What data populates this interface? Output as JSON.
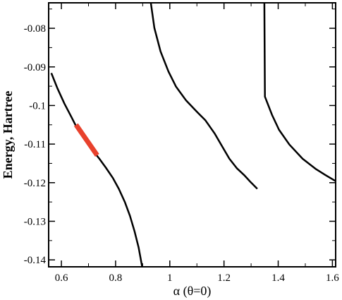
{
  "chart_data": {
    "type": "line",
    "title": "",
    "xlabel": "α (θ=0)",
    "ylabel": "Energy, Hartree",
    "xlim": [
      0.553,
      1.612
    ],
    "ylim": [
      -0.1418,
      -0.0734
    ],
    "grid": false,
    "legend": "none",
    "x_ticks": [
      0.6,
      0.8,
      1.0,
      1.2,
      1.4,
      1.6
    ],
    "x_tick_labels": [
      "0.6",
      "0.8",
      "1",
      "1.2",
      "1.4",
      "1.6"
    ],
    "y_ticks": [
      -0.08,
      -0.09,
      -0.1,
      -0.11,
      -0.12,
      -0.13,
      -0.14
    ],
    "y_tick_labels": [
      "-0.08",
      "-0.09",
      "-0.1",
      "-0.11",
      "-0.12",
      "-0.13",
      "-0.14"
    ],
    "series": [
      {
        "color": "#000000",
        "points": [
          [
            0.563,
            -0.0916
          ],
          [
            0.585,
            -0.0955
          ],
          [
            0.611,
            -0.0995
          ],
          [
            0.637,
            -0.103
          ],
          [
            0.661,
            -0.1063
          ],
          [
            0.688,
            -0.109
          ],
          [
            0.714,
            -0.1115
          ],
          [
            0.74,
            -0.1138
          ],
          [
            0.764,
            -0.1161
          ],
          [
            0.79,
            -0.1188
          ],
          [
            0.812,
            -0.1216
          ],
          [
            0.834,
            -0.125
          ],
          [
            0.853,
            -0.1286
          ],
          [
            0.87,
            -0.1326
          ],
          [
            0.885,
            -0.1368
          ],
          [
            0.898,
            -0.1418
          ]
        ]
      },
      {
        "color": "#000000",
        "points": [
          [
            0.93,
            -0.0734
          ],
          [
            0.943,
            -0.0799
          ],
          [
            0.966,
            -0.086
          ],
          [
            0.995,
            -0.0912
          ],
          [
            1.023,
            -0.0951
          ],
          [
            1.06,
            -0.0987
          ],
          [
            1.101,
            -0.1017
          ],
          [
            1.131,
            -0.1038
          ],
          [
            1.165,
            -0.1072
          ],
          [
            1.195,
            -0.1108
          ],
          [
            1.22,
            -0.1138
          ],
          [
            1.248,
            -0.1163
          ],
          [
            1.274,
            -0.118
          ],
          [
            1.299,
            -0.1199
          ],
          [
            1.323,
            -0.1216
          ]
        ]
      },
      {
        "color": "#000000",
        "points": [
          [
            1.349,
            -0.0734
          ],
          [
            1.351,
            -0.0977
          ],
          [
            1.377,
            -0.1024
          ],
          [
            1.403,
            -0.1063
          ],
          [
            1.441,
            -0.1101
          ],
          [
            1.49,
            -0.1138
          ],
          [
            1.54,
            -0.1165
          ],
          [
            1.574,
            -0.118
          ],
          [
            1.612,
            -0.1196
          ]
        ]
      },
      {
        "color": "#e8412c",
        "highlight": true,
        "points": [
          [
            0.654,
            -0.105
          ],
          [
            0.732,
            -0.1129
          ]
        ]
      }
    ]
  }
}
